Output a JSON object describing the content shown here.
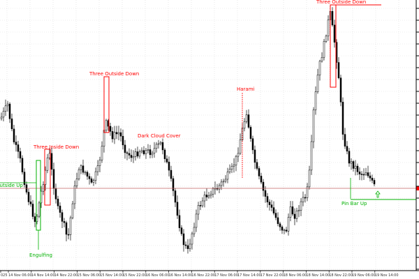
{
  "chart_data": {
    "type": "candlestick",
    "grid": true,
    "colors": {
      "background": "#ffffff",
      "grid": "#d9d9d9",
      "candle": "#000000",
      "bearish_pattern": "#ff0000",
      "bullish_pattern": "#00b000",
      "price_line": "#c06060"
    },
    "time_labels": [
      "025",
      "14 Nov 06:00",
      "14 Nov 14:00",
      "14 Nov 22:00",
      "15 Nov 06:00",
      "15 Nov 14:00",
      "15 Nov 22:00",
      "16 Nov 06:00",
      "16 Nov 14:00",
      "16 Nov 22:00",
      "17 Nov 06:00",
      "17 Nov 14:00",
      "17 Nov 22:00",
      "18 Nov 06:00",
      "18 Nov 14:00",
      "18 Nov 22:00",
      "19 Nov 06:00",
      "19 Nov 14:00"
    ],
    "annotations": [
      {
        "label": "Three Inside Down",
        "kind": "bearish"
      },
      {
        "label": "Three Outside Down",
        "kind": "bearish"
      },
      {
        "label": "Dark Cloud Cover",
        "kind": "bearish"
      },
      {
        "label": "Harami",
        "kind": "bearish"
      },
      {
        "label": "Three Outside Down",
        "kind": "bearish"
      },
      {
        "label": "Outside Up",
        "kind": "bullish"
      },
      {
        "label": "Engulfing",
        "kind": "bullish"
      },
      {
        "label": "Pin Bar Up",
        "kind": "bullish"
      }
    ]
  }
}
